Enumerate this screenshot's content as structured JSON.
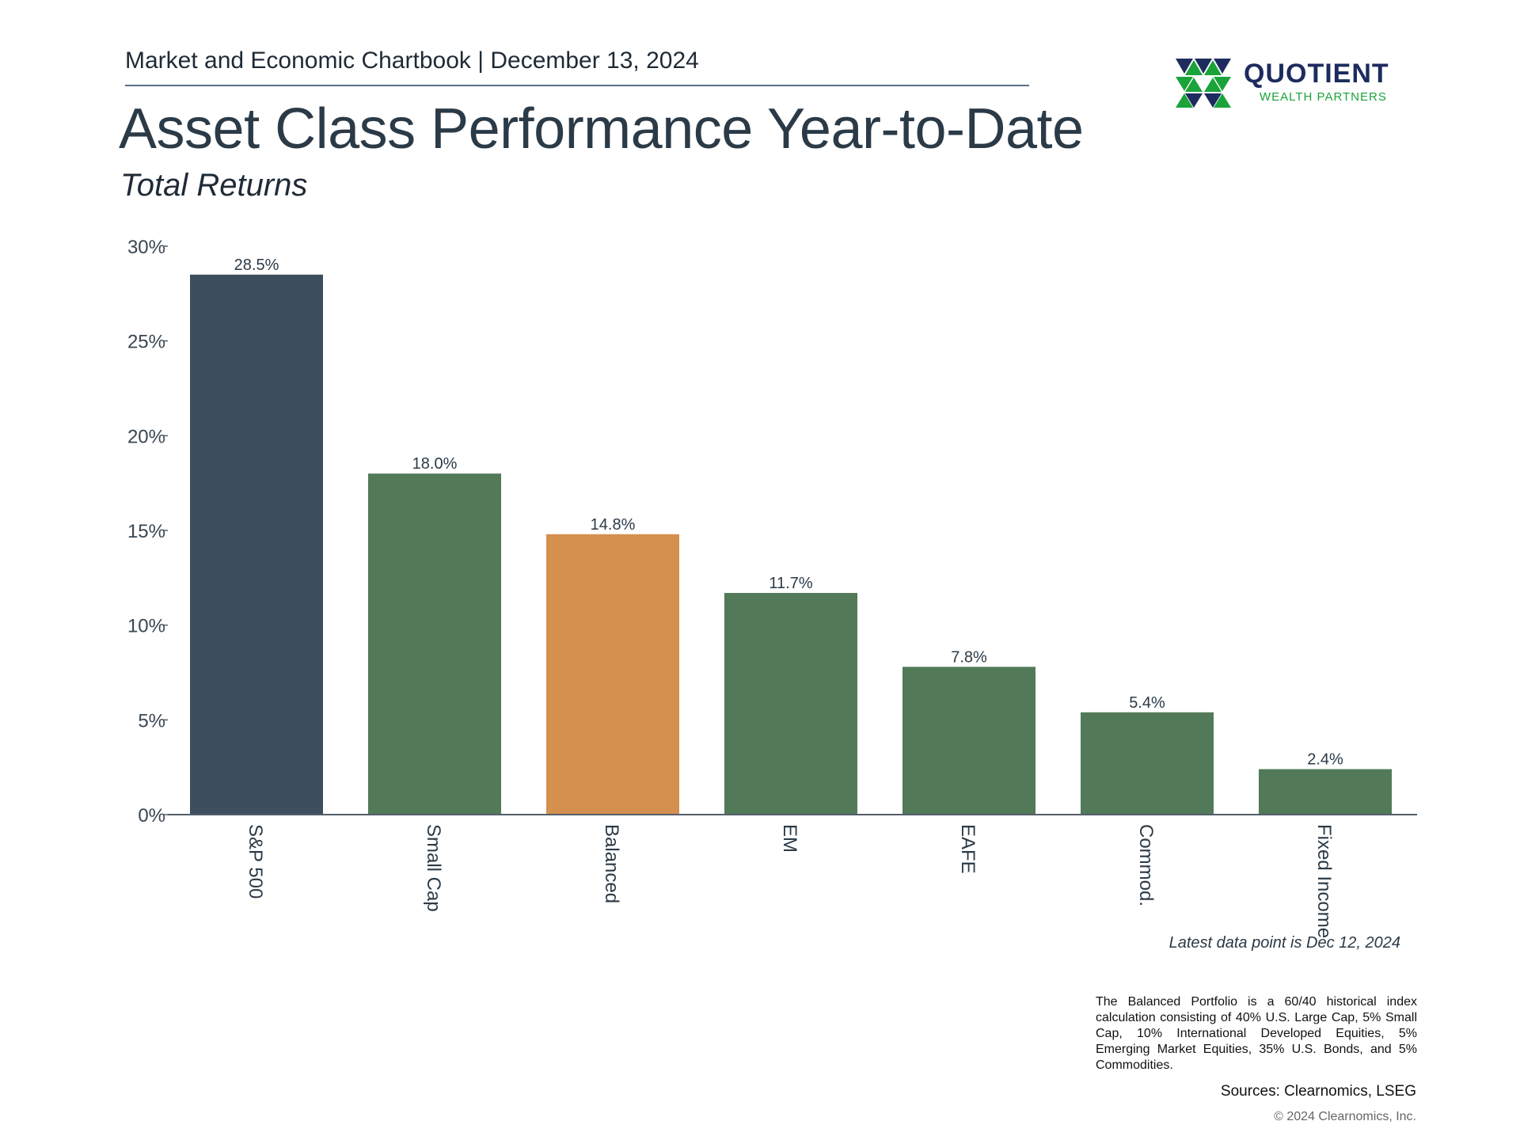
{
  "header": {
    "chartbook_line": "Market and Economic Chartbook | December 13, 2024",
    "title": "Asset Class Performance Year-to-Date",
    "subtitle": "Total Returns"
  },
  "logo": {
    "name": "QUOTIENT",
    "tagline": "WEALTH PARTNERS",
    "colors": {
      "navy": "#1d2b5e",
      "green": "#1aa33a"
    }
  },
  "chart_data": {
    "type": "bar",
    "title": "Asset Class Performance Year-to-Date",
    "subtitle": "Total Returns",
    "categories": [
      "S&P 500",
      "Small Cap",
      "Balanced",
      "EM",
      "EAFE",
      "Commod.",
      "Fixed Income"
    ],
    "values": [
      28.5,
      18.0,
      14.8,
      11.7,
      7.8,
      5.4,
      2.4
    ],
    "value_labels": [
      "28.5%",
      "18.0%",
      "14.8%",
      "11.7%",
      "7.8%",
      "5.4%",
      "2.4%"
    ],
    "bar_colors": [
      "#3d4f5f",
      "#527a59",
      "#d58f4f",
      "#527a59",
      "#527a59",
      "#527a59",
      "#527a59"
    ],
    "ylim": [
      0,
      30
    ],
    "yticks": [
      0,
      5,
      10,
      15,
      20,
      25,
      30
    ],
    "ytick_labels": [
      "0%",
      "5%",
      "10%",
      "15%",
      "20%",
      "25%",
      "30%"
    ],
    "xlabel": "",
    "ylabel": "",
    "grid": false,
    "category_label_rotation": "vertical"
  },
  "footer": {
    "latest_data_point": "Latest data point is Dec 12, 2024",
    "balanced_note": "The Balanced Portfolio is a 60/40 historical index calculation consisting of 40% U.S. Large Cap, 5% Small Cap, 10% International Developed Equities, 5% Emerging Market Equities, 35% U.S. Bonds, and 5% Commodities.",
    "sources": "Sources: Clearnomics, LSEG",
    "copyright": "© 2024 Clearnomics, Inc."
  }
}
